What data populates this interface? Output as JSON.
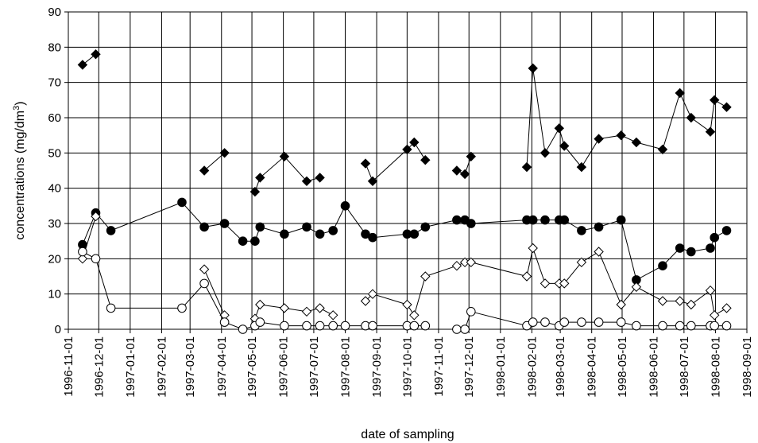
{
  "chart_data": {
    "type": "line",
    "xlabel": "date of sampling",
    "ylabel": "concentrations (mg/dm",
    "ylabel_sup": "3",
    "ylabel_end": ")",
    "ylim": [
      0,
      90
    ],
    "yticks": [
      0,
      10,
      20,
      30,
      40,
      50,
      60,
      70,
      80,
      90
    ],
    "x_axis": "date",
    "xlim": [
      "1996-11-01",
      "1998-09-01"
    ],
    "xticks": [
      "1996-11-01",
      "1996-12-01",
      "1997-01-01",
      "1997-02-01",
      "1997-03-01",
      "1997-04-01",
      "1997-05-01",
      "1997-06-01",
      "1997-07-01",
      "1997-08-01",
      "1997-09-01",
      "1997-10-01",
      "1997-11-01",
      "1997-12-01",
      "1998-01-01",
      "1998-02-01",
      "1998-03-01",
      "1998-04-01",
      "1998-05-01",
      "1998-06-01",
      "1998-07-01",
      "1998-08-01",
      "1998-09-01"
    ],
    "grid": true,
    "legend": "none",
    "series": [
      {
        "marker": "diamond",
        "fill": "black",
        "segments": [
          [
            [
              "1996-11-15",
              75
            ],
            [
              "1996-11-28",
              78
            ]
          ],
          [
            [
              "1997-03-15",
              45
            ],
            [
              "1997-04-04",
              50
            ]
          ],
          [
            [
              "1997-05-04",
              39
            ],
            [
              "1997-05-09",
              43
            ],
            [
              "1997-06-02",
              49
            ],
            [
              "1997-06-24",
              42
            ],
            [
              "1997-07-07",
              43
            ]
          ],
          [
            [
              "1997-08-21",
              47
            ],
            [
              "1997-08-28",
              42
            ],
            [
              "1997-10-01",
              51
            ],
            [
              "1997-10-08",
              53
            ],
            [
              "1997-10-19",
              48
            ]
          ],
          [
            [
              "1997-11-19",
              45
            ],
            [
              "1997-11-27",
              44
            ],
            [
              "1997-12-03",
              49
            ]
          ],
          [
            [
              "1998-01-27",
              46
            ],
            [
              "1998-02-02",
              74
            ],
            [
              "1998-02-14",
              50
            ],
            [
              "1998-02-28",
              57
            ],
            [
              "1998-03-05",
              52
            ],
            [
              "1998-03-22",
              46
            ],
            [
              "1998-04-08",
              54
            ],
            [
              "1998-04-30",
              55
            ],
            [
              "1998-05-15",
              53
            ],
            [
              "1998-06-10",
              51
            ],
            [
              "1998-06-27",
              67
            ],
            [
              "1998-07-08",
              60
            ],
            [
              "1998-07-27",
              56
            ],
            [
              "1998-07-31",
              65
            ],
            [
              "1998-08-12",
              63
            ]
          ]
        ]
      },
      {
        "marker": "circle",
        "fill": "black",
        "segments": [
          [
            [
              "1996-11-15",
              24
            ],
            [
              "1996-11-28",
              33
            ],
            [
              "1996-12-13",
              28
            ],
            [
              "1997-02-21",
              36
            ],
            [
              "1997-03-15",
              29
            ],
            [
              "1997-04-04",
              30
            ],
            [
              "1997-04-22",
              25
            ],
            [
              "1997-05-04",
              25
            ],
            [
              "1997-05-09",
              29
            ],
            [
              "1997-06-02",
              27
            ],
            [
              "1997-06-24",
              29
            ],
            [
              "1997-07-07",
              27
            ],
            [
              "1997-07-20",
              28
            ],
            [
              "1997-08-01",
              35
            ],
            [
              "1997-08-21",
              27
            ],
            [
              "1997-08-28",
              26
            ],
            [
              "1997-10-01",
              27
            ],
            [
              "1997-10-08",
              27
            ],
            [
              "1997-10-19",
              29
            ],
            [
              "1997-11-19",
              31
            ],
            [
              "1997-11-27",
              31
            ],
            [
              "1997-12-03",
              30
            ],
            [
              "1998-01-27",
              31
            ],
            [
              "1998-02-02",
              31
            ],
            [
              "1998-02-14",
              31
            ],
            [
              "1998-02-28",
              31
            ],
            [
              "1998-03-05",
              31
            ],
            [
              "1998-03-22",
              28
            ],
            [
              "1998-04-08",
              29
            ],
            [
              "1998-04-30",
              31
            ],
            [
              "1998-05-15",
              14
            ],
            [
              "1998-06-10",
              18
            ],
            [
              "1998-06-27",
              23
            ],
            [
              "1998-07-08",
              22
            ],
            [
              "1998-07-27",
              23
            ],
            [
              "1998-07-31",
              26
            ],
            [
              "1998-08-12",
              28
            ]
          ]
        ]
      },
      {
        "marker": "diamond",
        "fill": "white",
        "segments": [
          [
            [
              "1996-11-15",
              20
            ],
            [
              "1996-11-28",
              32
            ]
          ],
          [
            [
              "1997-03-15",
              17
            ],
            [
              "1997-04-04",
              4
            ]
          ],
          [
            [
              "1997-05-04",
              3
            ],
            [
              "1997-05-09",
              7
            ],
            [
              "1997-06-02",
              6
            ],
            [
              "1997-06-24",
              5
            ],
            [
              "1997-07-07",
              6
            ],
            [
              "1997-07-20",
              4
            ]
          ],
          [
            [
              "1997-08-21",
              8
            ],
            [
              "1997-08-28",
              10
            ],
            [
              "1997-10-01",
              7
            ],
            [
              "1997-10-08",
              4
            ],
            [
              "1997-10-19",
              15
            ],
            [
              "1997-11-19",
              18
            ],
            [
              "1997-11-27",
              19
            ],
            [
              "1997-12-03",
              19
            ],
            [
              "1998-01-27",
              15
            ],
            [
              "1998-02-02",
              23
            ],
            [
              "1998-02-14",
              13
            ],
            [
              "1998-02-28",
              13
            ],
            [
              "1998-03-05",
              13
            ],
            [
              "1998-03-22",
              19
            ],
            [
              "1998-04-08",
              22
            ],
            [
              "1998-04-30",
              7
            ],
            [
              "1998-05-15",
              12
            ],
            [
              "1998-06-10",
              8
            ],
            [
              "1998-06-27",
              8
            ],
            [
              "1998-07-08",
              7
            ],
            [
              "1998-07-27",
              11
            ],
            [
              "1998-07-31",
              4
            ],
            [
              "1998-08-12",
              6
            ]
          ]
        ]
      },
      {
        "marker": "circle",
        "fill": "white",
        "segments": [
          [
            [
              "1996-11-15",
              22
            ],
            [
              "1996-11-28",
              20
            ],
            [
              "1996-12-13",
              6
            ],
            [
              "1997-02-21",
              6
            ],
            [
              "1997-03-15",
              13
            ],
            [
              "1997-04-04",
              2
            ],
            [
              "1997-04-22",
              0
            ],
            [
              "1997-05-04",
              1
            ],
            [
              "1997-05-09",
              2
            ],
            [
              "1997-06-02",
              1
            ],
            [
              "1997-06-24",
              1
            ],
            [
              "1997-07-07",
              1
            ],
            [
              "1997-07-20",
              1
            ],
            [
              "1997-08-01",
              1
            ],
            [
              "1997-08-21",
              1
            ],
            [
              "1997-08-28",
              1
            ],
            [
              "1997-10-01",
              1
            ],
            [
              "1997-10-08",
              1
            ],
            [
              "1997-10-19",
              1
            ]
          ],
          [
            [
              "1997-11-19",
              0
            ],
            [
              "1997-11-27",
              0
            ],
            [
              "1997-12-03",
              5
            ],
            [
              "1998-01-27",
              1
            ],
            [
              "1998-02-02",
              2
            ],
            [
              "1998-02-14",
              2
            ],
            [
              "1998-02-28",
              1
            ],
            [
              "1998-03-05",
              2
            ],
            [
              "1998-03-22",
              2
            ],
            [
              "1998-04-08",
              2
            ],
            [
              "1998-04-30",
              2
            ],
            [
              "1998-05-15",
              1
            ],
            [
              "1998-06-10",
              1
            ],
            [
              "1998-06-27",
              1
            ],
            [
              "1998-07-08",
              1
            ],
            [
              "1998-07-27",
              1
            ],
            [
              "1998-07-31",
              1
            ],
            [
              "1998-08-12",
              1
            ]
          ]
        ]
      }
    ]
  }
}
